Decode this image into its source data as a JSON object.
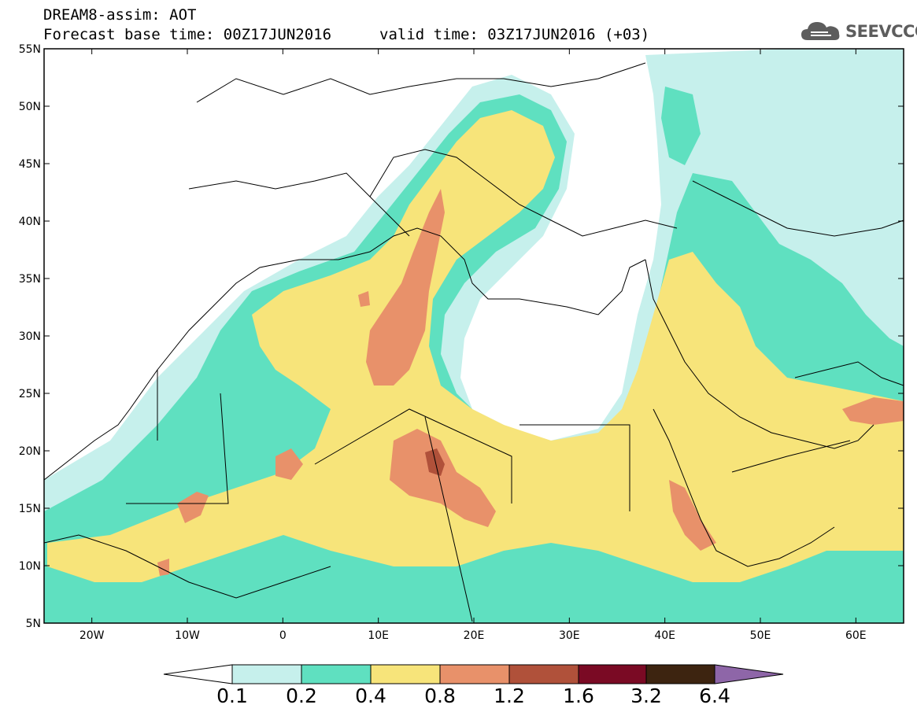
{
  "header": {
    "title_line1": "DREAM8-assim: AOT",
    "title_line2": "Forecast base time: 00Z17JUN2016",
    "valid_line": "valid time: 03Z17JUN2016 (+03)"
  },
  "logo": {
    "text": "SEEVCCC",
    "icon": "cloud-icon"
  },
  "map": {
    "lat_labels": [
      "55N",
      "50N",
      "45N",
      "40N",
      "35N",
      "30N",
      "25N",
      "20N",
      "15N",
      "10N",
      "5N"
    ],
    "lon_labels": [
      "20W",
      "10W",
      "0",
      "10E",
      "20E",
      "30E",
      "40E",
      "50E",
      "60E"
    ],
    "lon_range": [
      -25,
      65
    ],
    "lat_range": [
      5,
      55
    ],
    "variable": "AOT"
  },
  "colorbar": {
    "labels": [
      "0.1",
      "0.2",
      "0.4",
      "0.8",
      "1.2",
      "1.6",
      "3.2",
      "6.4"
    ],
    "colors": {
      "below": "#ffffff",
      "c1": "#c6f0ec",
      "c2": "#5fe0c0",
      "c3": "#f7e47a",
      "c4": "#e8916a",
      "c5": "#b0513a",
      "c6": "#7a0a24",
      "c7": "#3d2410",
      "above": "#8e66a8"
    }
  }
}
